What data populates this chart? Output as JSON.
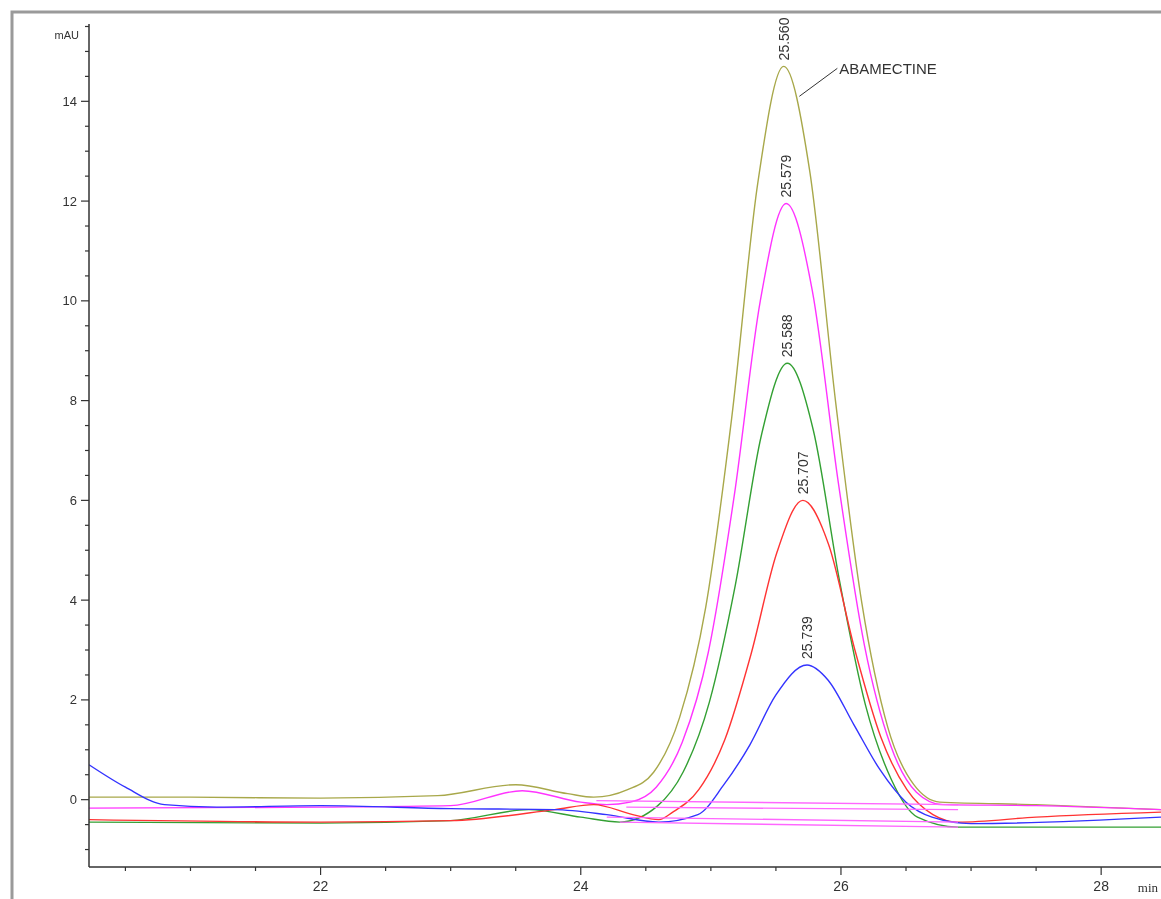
{
  "chart_data": {
    "type": "line",
    "ylabel": "mAU",
    "xlabel": "min",
    "xlim": [
      20.22,
      28.46
    ],
    "ylim": [
      -1.35,
      15.55
    ],
    "xticks": [
      {
        "value": 20.5,
        "label": null
      },
      {
        "value": 21,
        "label": null
      },
      {
        "value": 21.5,
        "label": null
      },
      22,
      {
        "value": 22.5,
        "label": null
      },
      {
        "value": 23,
        "label": null
      },
      {
        "value": 23.5,
        "label": null
      },
      24,
      {
        "value": 24.5,
        "label": null
      },
      {
        "value": 25,
        "label": null
      },
      {
        "value": 25.5,
        "label": null
      },
      26,
      {
        "value": 26.5,
        "label": null
      },
      {
        "value": 27,
        "label": null
      },
      {
        "value": 27.5,
        "label": null
      },
      28
    ],
    "yticks": [
      {
        "value": -1,
        "label": null
      },
      {
        "value": -0.5,
        "label": null
      },
      0,
      {
        "value": 0.5,
        "label": null
      },
      {
        "value": 1,
        "label": null
      },
      {
        "value": 1.5,
        "label": null
      },
      2,
      {
        "value": 2.5,
        "label": null
      },
      {
        "value": 3,
        "label": null
      },
      {
        "value": 3.5,
        "label": null
      },
      4,
      {
        "value": 4.5,
        "label": null
      },
      {
        "value": 5,
        "label": null
      },
      {
        "value": 5.5,
        "label": null
      },
      6,
      {
        "value": 6.5,
        "label": null
      },
      {
        "value": 7,
        "label": null
      },
      {
        "value": 7.5,
        "label": null
      },
      8,
      {
        "value": 8.5,
        "label": null
      },
      {
        "value": 9,
        "label": null
      },
      {
        "value": 9.5,
        "label": null
      },
      10,
      {
        "value": 10.5,
        "label": null
      },
      {
        "value": 11,
        "label": null
      },
      {
        "value": 11.5,
        "label": null
      },
      12,
      {
        "value": 12.5,
        "label": null
      },
      {
        "value": 13,
        "label": null
      },
      {
        "value": 13.5,
        "label": null
      },
      14,
      {
        "value": 14.5,
        "label": null
      },
      {
        "value": 15,
        "label": null
      },
      {
        "value": 15.5,
        "label": null
      }
    ],
    "grid": false,
    "marker": "none",
    "line_style": "solid",
    "series": [
      {
        "color": "#a8a84a",
        "x": [
          20.22,
          21,
          22,
          22.9,
          23.5,
          23.9,
          24.1,
          24.36,
          24.56,
          24.76,
          24.96,
          25.16,
          25.36,
          25.56,
          25.76,
          25.96,
          26.16,
          26.36,
          26.56,
          26.76,
          27.5,
          28.46
        ],
        "values": [
          0.05,
          0.05,
          0.03,
          0.08,
          0.3,
          0.12,
          0.05,
          0.2,
          0.55,
          1.65,
          3.85,
          7.65,
          12.35,
          14.7,
          12.6,
          7.95,
          3.95,
          1.45,
          0.3,
          -0.05,
          -0.1,
          -0.2
        ]
      },
      {
        "color": "#ff33ff",
        "x": [
          20.22,
          22,
          23,
          23.55,
          24,
          24.2,
          24.38,
          24.58,
          24.78,
          24.98,
          25.18,
          25.38,
          25.579,
          25.78,
          25.98,
          26.18,
          26.38,
          26.58,
          26.78,
          27.5,
          28.46
        ],
        "values": [
          -0.17,
          -0.15,
          -0.12,
          0.18,
          -0.05,
          -0.1,
          -0.05,
          0.25,
          1.15,
          2.95,
          6.1,
          10,
          11.95,
          10.2,
          6.35,
          3.1,
          1.1,
          0.15,
          -0.1,
          -0.12,
          -0.2
        ]
      },
      {
        "color": "#33a033",
        "x": [
          20.22,
          22,
          23,
          23.6,
          24,
          24.3,
          24.588,
          24.788,
          24.988,
          25.188,
          25.388,
          25.588,
          25.788,
          25.988,
          26.188,
          26.388,
          26.588,
          26.9,
          28.46
        ],
        "values": [
          -0.45,
          -0.47,
          -0.42,
          -0.2,
          -0.35,
          -0.45,
          -0.13,
          0.56,
          1.95,
          4.3,
          7.3,
          8.75,
          7.4,
          4.4,
          1.9,
          0.4,
          -0.35,
          -0.55,
          -0.55
        ]
      },
      {
        "color": "#ff3333",
        "x": [
          20.22,
          22,
          23,
          23.8,
          24.1,
          24.4,
          24.6,
          24.707,
          24.907,
          25.107,
          25.307,
          25.507,
          25.707,
          25.907,
          26.107,
          26.307,
          26.507,
          26.707,
          26.9,
          27.5,
          28.46
        ],
        "values": [
          -0.4,
          -0.45,
          -0.42,
          -0.2,
          -0.1,
          -0.3,
          -0.4,
          -0.25,
          0.2,
          1.2,
          2.9,
          4.95,
          6,
          5.1,
          3,
          1.25,
          0.2,
          -0.3,
          -0.45,
          -0.35,
          -0.25
        ]
      },
      {
        "color": "#3333ff",
        "x": [
          20.22,
          20.5,
          20.8,
          21.2,
          22,
          23,
          23.8,
          24.2,
          24.6,
          24.9,
          25.1,
          25.3,
          25.5,
          25.739,
          25.9,
          26.1,
          26.3,
          26.5,
          26.7,
          27,
          28.46
        ],
        "values": [
          0.7,
          0.25,
          -0.1,
          -0.15,
          -0.12,
          -0.18,
          -0.2,
          -0.3,
          -0.45,
          -0.3,
          0.3,
          1.1,
          2.1,
          2.7,
          2.4,
          1.5,
          0.6,
          -0.05,
          -0.35,
          -0.48,
          -0.35
        ]
      },
      {
        "color": "#ff66ff",
        "x": [
          24.12,
          26.9
        ],
        "values": [
          -0.02,
          -0.1
        ]
      },
      {
        "color": "#ff66ff",
        "x": [
          24.35,
          26.9
        ],
        "values": [
          -0.15,
          -0.2
        ]
      },
      {
        "color": "#ff66ff",
        "x": [
          24.2,
          26.9
        ],
        "values": [
          -0.35,
          -0.45
        ]
      },
      {
        "color": "#ff66ff",
        "x": [
          24.3,
          26.9
        ],
        "values": [
          -0.45,
          -0.55
        ]
      }
    ],
    "annotations": [
      {
        "text": "25.560",
        "x": 25.56,
        "y": 14.7
      },
      {
        "text": "25.579",
        "x": 25.579,
        "y": 11.95
      },
      {
        "text": "25.588",
        "x": 25.588,
        "y": 8.75
      },
      {
        "text": "25.707",
        "x": 25.707,
        "y": 6
      },
      {
        "text": "25.739",
        "x": 25.739,
        "y": 2.7
      },
      {
        "text": "ABAMECTINE",
        "x": 25.68,
        "y": 14.1
      }
    ]
  }
}
